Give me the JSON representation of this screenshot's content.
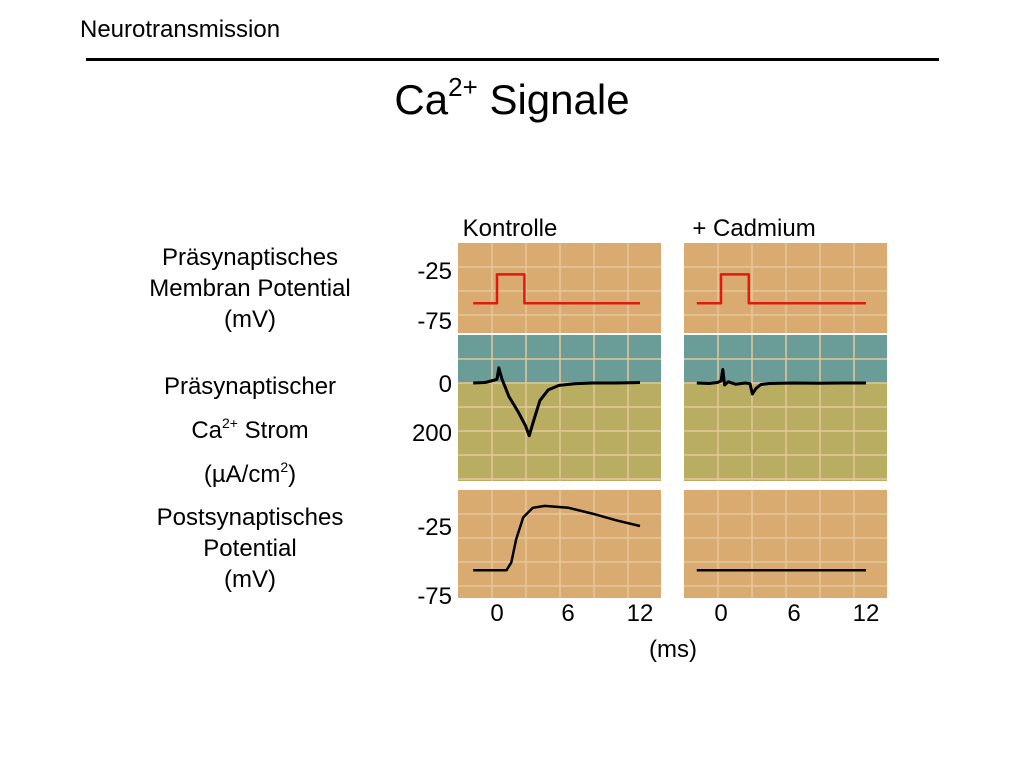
{
  "header": {
    "text": "Neurotransmission"
  },
  "slide": {
    "title_main": "Ca",
    "title_superscript": "2+",
    "title_rest": " Signale"
  },
  "colors": {
    "orange_bg": "#d9ab70",
    "teal_bg": "#6a9c98",
    "olive_bg": "#b9ad62",
    "grid": "#e6c79b",
    "pre_trace": "#e01a10",
    "trace": "#000000"
  },
  "chart_data": {
    "type": "line",
    "columns": [
      "Kontrolle",
      "+ Cadmium"
    ],
    "x_ticks": [
      "0",
      "6",
      "12"
    ],
    "x_unit": "(ms)",
    "xlim": [
      -2,
      12.5
    ],
    "rows": [
      {
        "id": "presynaptic_potential",
        "label": [
          "Präsynaptisches",
          "Membran Potential",
          "(mV)"
        ],
        "y_ticks": [
          "-25",
          "-75"
        ],
        "background": "orange",
        "series": [
          {
            "column": "Kontrolle",
            "x": [
              -2,
              0,
              0,
              2.3,
              2.3,
              12
            ],
            "y": [
              -70,
              -70,
              -31,
              -31,
              -70,
              -70
            ]
          },
          {
            "column": "+ Cadmium",
            "x": [
              -2,
              0,
              0,
              2.3,
              2.3,
              12
            ],
            "y": [
              -70,
              -70,
              -31,
              -31,
              -70,
              -70
            ]
          }
        ]
      },
      {
        "id": "presynaptic_ca_current",
        "label_parts": {
          "line1": "Präsynaptischer",
          "line2_a": "Ca",
          "line2_sup": "2+",
          "line2_b": " Strom",
          "line3_a": "(µA/cm",
          "line3_sup": "2",
          "line3_b": ")"
        },
        "y_ticks": [
          "0",
          "200"
        ],
        "background": "teal-olive",
        "series": [
          {
            "column": "Kontrolle",
            "x": [
              -2,
              -1,
              -0.5,
              0,
              0.15,
              0.4,
              1,
              1.8,
              2.4,
              2.7,
              3.1,
              3.6,
              4.3,
              5.2,
              6.5,
              8,
              10,
              12
            ],
            "y": [
              0,
              -2,
              -8,
              -15,
              -62,
              -18,
              55,
              120,
              175,
              215,
              150,
              72,
              28,
              10,
              3,
              0,
              0,
              -2
            ]
          },
          {
            "column": "+ Cadmium",
            "x": [
              -2,
              -1,
              -0.3,
              0,
              0.15,
              0.3,
              0.6,
              1.2,
              2,
              2.4,
              2.6,
              2.9,
              3.3,
              4,
              6,
              8,
              10,
              12
            ],
            "y": [
              0,
              2,
              -2,
              -8,
              -55,
              8,
              -5,
              5,
              0,
              3,
              45,
              22,
              6,
              2,
              0,
              1,
              0,
              0
            ]
          }
        ]
      },
      {
        "id": "postsynaptic_potential",
        "label": [
          "Postsynaptisches",
          "Potential",
          "(mV)"
        ],
        "y_ticks": [
          "-25",
          "-75"
        ],
        "background": "orange",
        "series": [
          {
            "column": "Kontrolle",
            "x": [
              -2,
              0.8,
              1.2,
              1.6,
              2.2,
              3,
              4,
              6,
              8,
              10,
              12
            ],
            "y": [
              -70,
              -70,
              -62,
              -38,
              -15,
              -5,
              -3,
              -5,
              -11,
              -18,
              -24
            ]
          },
          {
            "column": "+ Cadmium",
            "x": [
              -2,
              12
            ],
            "y": [
              -70,
              -70
            ]
          }
        ]
      }
    ]
  }
}
